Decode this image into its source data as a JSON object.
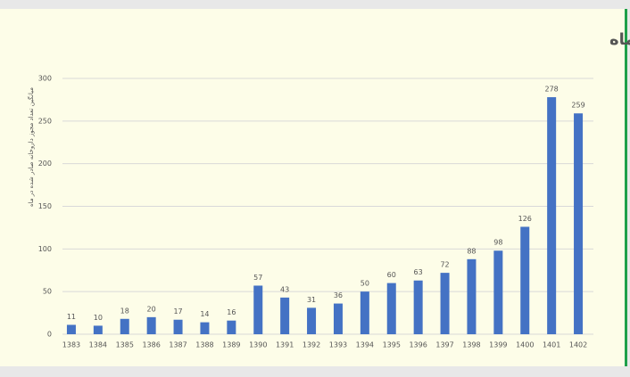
{
  "chart_data": {
    "type": "bar",
    "title": "روند میانگین تعداد مجوز داروخانه صادر شده در ماه",
    "y_label": "میانگین تعداد مجوز داروخانه صادر شده در ماه",
    "categories": [
      "1383",
      "1384",
      "1385",
      "1386",
      "1387",
      "1388",
      "1389",
      "1390",
      "1391",
      "1392",
      "1393",
      "1394",
      "1395",
      "1396",
      "1397",
      "1398",
      "1399",
      "1400",
      "1401",
      "1402"
    ],
    "values": [
      11,
      10,
      18,
      20,
      17,
      14,
      16,
      57,
      43,
      31,
      36,
      50,
      60,
      63,
      72,
      88,
      98,
      126,
      278,
      259
    ],
    "color": "#4472c4",
    "ylim": [
      0,
      300
    ],
    "yticks": [
      0,
      50,
      100,
      150,
      200,
      250,
      300
    ],
    "grid": true
  }
}
